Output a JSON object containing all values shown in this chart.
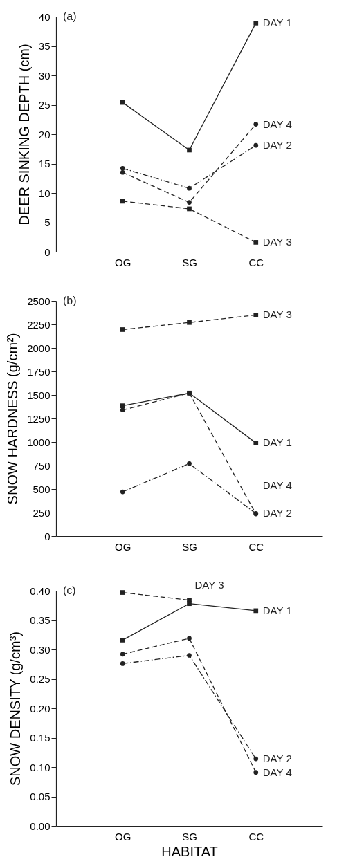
{
  "chart_data": [
    {
      "type": "line",
      "ylabel": "DEER SINKING DEPTH (cm)",
      "categories": [
        "OG",
        "SG",
        "CC"
      ],
      "ylim": [
        0,
        40
      ],
      "yticks": [
        0,
        5,
        10,
        15,
        20,
        25,
        30,
        35,
        40
      ],
      "annotations": [
        "(a)"
      ],
      "series": [
        {
          "name": "DAY 1",
          "color": "#222222",
          "marker": "square",
          "line_style": "solid",
          "values": [
            25.4,
            17.3,
            38.9
          ]
        },
        {
          "name": "DAY 4",
          "color": "#222222",
          "marker": "circle",
          "line_style": "dashed",
          "values": [
            13.5,
            8.4,
            21.7
          ]
        },
        {
          "name": "DAY 2",
          "color": "#222222",
          "marker": "circle",
          "line_style": "dotted",
          "values": [
            14.2,
            10.8,
            18.1
          ]
        },
        {
          "name": "DAY 3",
          "color": "#222222",
          "marker": "square",
          "line_style": "dashed",
          "values": [
            8.6,
            7.3,
            1.6
          ]
        }
      ]
    },
    {
      "type": "line",
      "ylabel": "SNOW HARDNESS (g/cm²)",
      "categories": [
        "OG",
        "SG",
        "CC"
      ],
      "ylim": [
        0,
        2500
      ],
      "yticks": [
        0,
        250,
        500,
        750,
        1000,
        1250,
        1500,
        1750,
        2000,
        2250,
        2500
      ],
      "annotations": [
        "(b)"
      ],
      "series": [
        {
          "name": "DAY 3",
          "color": "#222222",
          "marker": "square",
          "line_style": "dashed",
          "values": [
            2195,
            2270,
            2350
          ]
        },
        {
          "name": "DAY 1",
          "color": "#222222",
          "marker": "square",
          "line_style": "solid",
          "values": [
            1385,
            1520,
            990
          ]
        },
        {
          "name": "DAY 4",
          "color": "#222222",
          "marker": "circle",
          "line_style": "dashed",
          "values": [
            1340,
            1520,
            235
          ]
        },
        {
          "name": "DAY 2",
          "color": "#222222",
          "marker": "circle",
          "line_style": "dotted",
          "values": [
            470,
            770,
            240
          ]
        }
      ]
    },
    {
      "type": "line",
      "ylabel": "SNOW DENSITY (g/cm³)",
      "xlabel": "HABITAT",
      "categories": [
        "OG",
        "SG",
        "CC"
      ],
      "ylim": [
        0,
        0.4
      ],
      "yticks": [
        {
          "value": 0,
          "label": "0.00"
        },
        {
          "value": 0.05,
          "label": "0.05"
        },
        {
          "value": 0.1,
          "label": "0.10"
        },
        {
          "value": 0.15,
          "label": "0.15"
        },
        {
          "value": 0.2,
          "label": "0.20"
        },
        {
          "value": 0.25,
          "label": "0.25"
        },
        {
          "value": 0.3,
          "label": "0.30"
        },
        {
          "value": 0.35,
          "label": "0.35"
        },
        {
          "value": 0.4,
          "label": "0.40"
        }
      ],
      "annotations": [
        "(c)"
      ],
      "series": [
        {
          "name": "DAY 3",
          "color": "#222222",
          "marker": "square",
          "line_style": "dashed",
          "values": [
            0.397,
            0.384,
            null
          ]
        },
        {
          "name": "DAY 1",
          "color": "#222222",
          "marker": "square",
          "line_style": "solid",
          "values": [
            0.316,
            0.378,
            0.366
          ]
        },
        {
          "name": "DAY 4",
          "color": "#222222",
          "marker": "circle",
          "line_style": "dashed",
          "values": [
            0.292,
            0.319,
            0.091
          ]
        },
        {
          "name": "DAY 2",
          "color": "#222222",
          "marker": "circle",
          "line_style": "dotted",
          "values": [
            0.276,
            0.29,
            0.114
          ]
        }
      ]
    }
  ]
}
